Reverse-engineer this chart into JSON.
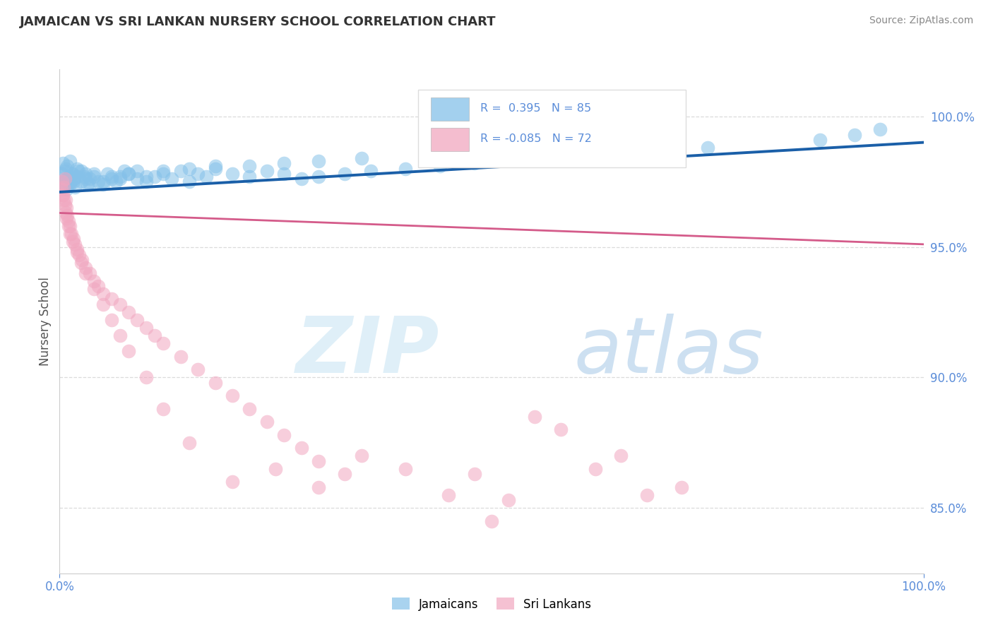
{
  "title": "JAMAICAN VS SRI LANKAN NURSERY SCHOOL CORRELATION CHART",
  "source": "Source: ZipAtlas.com",
  "ylabel": "Nursery School",
  "legend_blue_label": "Jamaicans",
  "legend_pink_label": "Sri Lankans",
  "ytick_labels": [
    "85.0%",
    "90.0%",
    "95.0%",
    "100.0%"
  ],
  "ytick_values": [
    85.0,
    90.0,
    95.0,
    100.0
  ],
  "xmin": 0.0,
  "xmax": 100.0,
  "ymin": 82.5,
  "ymax": 101.8,
  "blue_color": "#85c1e9",
  "blue_line_color": "#1a5fa8",
  "pink_color": "#f1a7c0",
  "pink_line_color": "#d45b8a",
  "background_color": "#ffffff",
  "grid_color": "#cccccc",
  "title_color": "#333333",
  "axis_label_color": "#5b8dd9",
  "blue_line_y0": 97.1,
  "blue_line_y100": 99.0,
  "pink_line_y0": 96.3,
  "pink_line_y100": 95.1,
  "blue_x": [
    0.3,
    0.4,
    0.5,
    0.6,
    0.7,
    0.8,
    0.9,
    1.0,
    1.1,
    1.2,
    1.3,
    1.5,
    1.7,
    2.0,
    2.2,
    2.5,
    2.8,
    3.0,
    3.2,
    3.5,
    4.0,
    4.5,
    5.0,
    5.5,
    6.0,
    6.5,
    7.0,
    7.5,
    8.0,
    9.0,
    10.0,
    11.0,
    12.0,
    13.0,
    14.0,
    15.0,
    16.0,
    17.0,
    18.0,
    20.0,
    22.0,
    24.0,
    26.0,
    28.0,
    30.0,
    33.0,
    36.0,
    40.0,
    44.0,
    48.0,
    0.5,
    0.6,
    0.8,
    1.0,
    1.2,
    1.4,
    1.6,
    1.8,
    2.0,
    2.5,
    3.0,
    3.5,
    4.0,
    5.0,
    6.0,
    7.0,
    8.0,
    9.0,
    10.0,
    12.0,
    15.0,
    18.0,
    22.0,
    26.0,
    30.0,
    35.0,
    60.0,
    75.0,
    88.0,
    92.0,
    95.0,
    67.0,
    71.0,
    52.0,
    57.0
  ],
  "blue_y": [
    97.8,
    98.2,
    97.5,
    97.9,
    98.0,
    97.6,
    98.1,
    97.4,
    97.7,
    98.3,
    97.5,
    97.8,
    97.6,
    98.0,
    97.9,
    97.5,
    97.7,
    97.8,
    97.4,
    97.6,
    97.7,
    97.5,
    97.4,
    97.8,
    97.6,
    97.5,
    97.7,
    97.9,
    97.8,
    97.6,
    97.5,
    97.7,
    97.8,
    97.6,
    97.9,
    97.5,
    97.8,
    97.7,
    98.0,
    97.8,
    97.7,
    97.9,
    97.8,
    97.6,
    97.7,
    97.8,
    97.9,
    98.0,
    98.1,
    98.2,
    97.3,
    97.5,
    97.2,
    97.6,
    97.4,
    97.8,
    97.5,
    97.3,
    97.7,
    97.9,
    97.6,
    97.4,
    97.8,
    97.5,
    97.7,
    97.6,
    97.8,
    97.9,
    97.7,
    97.9,
    98.0,
    98.1,
    98.1,
    98.2,
    98.3,
    98.4,
    99.0,
    98.8,
    99.1,
    99.3,
    99.5,
    98.9,
    99.0,
    98.5,
    98.6
  ],
  "pink_x": [
    0.2,
    0.3,
    0.4,
    0.5,
    0.6,
    0.7,
    0.8,
    0.9,
    1.0,
    1.2,
    1.4,
    1.6,
    1.8,
    2.0,
    2.3,
    2.6,
    3.0,
    3.5,
    4.0,
    4.5,
    5.0,
    6.0,
    7.0,
    8.0,
    9.0,
    10.0,
    11.0,
    12.0,
    14.0,
    16.0,
    18.0,
    20.0,
    22.0,
    24.0,
    26.0,
    28.0,
    30.0,
    33.0,
    0.4,
    0.5,
    0.6,
    0.7,
    0.8,
    1.0,
    1.2,
    1.5,
    2.0,
    2.5,
    3.0,
    4.0,
    5.0,
    6.0,
    7.0,
    8.0,
    10.0,
    12.0,
    15.0,
    20.0,
    25.0,
    30.0,
    35.0,
    40.0,
    45.0,
    50.0,
    55.0,
    48.0,
    52.0,
    58.0,
    62.0,
    65.0,
    68.0,
    72.0
  ],
  "pink_y": [
    97.2,
    97.5,
    97.0,
    97.3,
    97.6,
    96.8,
    96.5,
    96.2,
    96.0,
    95.8,
    95.5,
    95.3,
    95.1,
    94.9,
    94.7,
    94.5,
    94.2,
    94.0,
    93.7,
    93.5,
    93.2,
    93.0,
    92.8,
    92.5,
    92.2,
    91.9,
    91.6,
    91.3,
    90.8,
    90.3,
    89.8,
    89.3,
    88.8,
    88.3,
    87.8,
    87.3,
    86.8,
    86.3,
    97.0,
    96.8,
    96.6,
    96.3,
    96.1,
    95.8,
    95.5,
    95.2,
    94.8,
    94.4,
    94.0,
    93.4,
    92.8,
    92.2,
    91.6,
    91.0,
    90.0,
    88.8,
    87.5,
    86.0,
    86.5,
    85.8,
    87.0,
    86.5,
    85.5,
    84.5,
    88.5,
    86.3,
    85.3,
    88.0,
    86.5,
    87.0,
    85.5,
    85.8
  ]
}
